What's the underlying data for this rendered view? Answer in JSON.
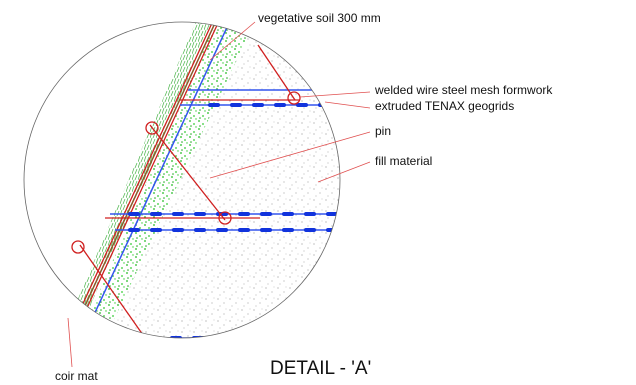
{
  "labels": {
    "vegetative_soil": "vegetative soil 300 mm",
    "mesh_formwork": "welded wire steel mesh formwork",
    "geogrids": "extruded TENAX geogrids",
    "pin": "pin",
    "fill_material": "fill material",
    "coir_mat": "coir mat"
  },
  "title": "DETAIL - 'A'"
}
